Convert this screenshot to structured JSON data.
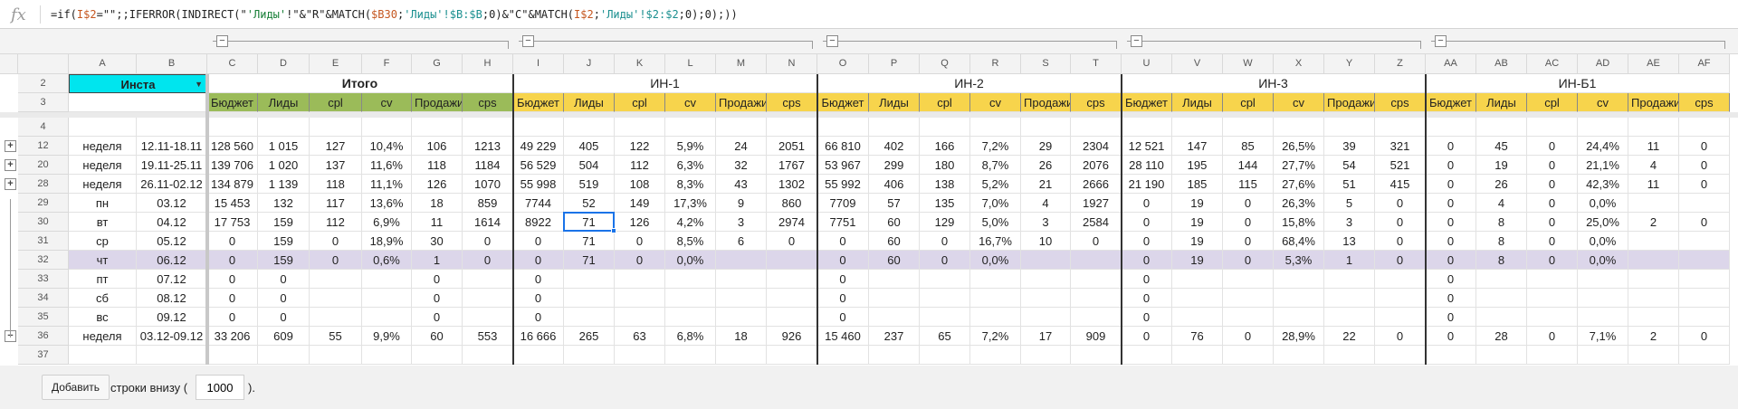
{
  "formula_bar": {
    "fx_label": "fx",
    "formula_parts": [
      {
        "t": "=if(",
        "c": ""
      },
      {
        "t": "I$2",
        "c": "fsorange"
      },
      {
        "t": "=\"\";;IFERROR(INDIRECT(\"",
        "c": ""
      },
      {
        "t": "'Лиды'",
        "c": "fsgreen"
      },
      {
        "t": "!\"&\"R\"&MATCH(",
        "c": ""
      },
      {
        "t": "$B30",
        "c": "fsorange"
      },
      {
        "t": ";",
        "c": ""
      },
      {
        "t": "'Лиды'!$B:$B",
        "c": "fsteal"
      },
      {
        "t": ";0)&\"C\"&MATCH(",
        "c": ""
      },
      {
        "t": "I$2",
        "c": "fsorange"
      },
      {
        "t": ";",
        "c": ""
      },
      {
        "t": "'Лиды'!$2:$2",
        "c": "fsteal"
      },
      {
        "t": ";0);0);))",
        "c": ""
      }
    ]
  },
  "colors": {
    "cyan": "#00e5ee",
    "green": "#9bbb59",
    "yellow": "#f7d44c",
    "lavender": "#dcd6ea",
    "selection": "#1a73e8"
  },
  "column_letters": [
    "A",
    "B",
    "C",
    "D",
    "E",
    "F",
    "G",
    "H",
    "I",
    "J",
    "K",
    "L",
    "M",
    "N",
    "O",
    "P",
    "Q",
    "R",
    "S",
    "T",
    "U",
    "V",
    "W",
    "X",
    "Y",
    "Z",
    "AA",
    "AB",
    "AC",
    "AD",
    "AE",
    "AF"
  ],
  "frozen": {
    "row2": {
      "num": "2",
      "a": "Инста"
    },
    "row3": {
      "num": "3"
    }
  },
  "groups": [
    {
      "title": "Итого",
      "sub_color": "green"
    },
    {
      "title": "ИН-1",
      "sub_color": "yellow"
    },
    {
      "title": "ИН-2",
      "sub_color": "yellow"
    },
    {
      "title": "ИН-3",
      "sub_color": "yellow"
    },
    {
      "title": "ИН-Б1",
      "sub_color": "yellow"
    }
  ],
  "subheaders": [
    "Бюджет",
    "Лиды",
    "cpl",
    "cv",
    "Продажи",
    "cps"
  ],
  "rows": [
    {
      "num": "4",
      "toggle": "",
      "a": "",
      "b": "",
      "cells": []
    },
    {
      "num": "12",
      "toggle": "+",
      "a": "неделя",
      "b": "12.11-18.11",
      "cells": [
        "128 560",
        "1 015",
        "127",
        "10,4%",
        "106",
        "1213",
        "49 229",
        "405",
        "122",
        "5,9%",
        "24",
        "2051",
        "66 810",
        "402",
        "166",
        "7,2%",
        "29",
        "2304",
        "12 521",
        "147",
        "85",
        "26,5%",
        "39",
        "321",
        "0",
        "45",
        "0",
        "24,4%",
        "11",
        "0"
      ]
    },
    {
      "num": "20",
      "toggle": "+",
      "a": "неделя",
      "b": "19.11-25.11",
      "cells": [
        "139 706",
        "1 020",
        "137",
        "11,6%",
        "118",
        "1184",
        "56 529",
        "504",
        "112",
        "6,3%",
        "32",
        "1767",
        "53 967",
        "299",
        "180",
        "8,7%",
        "26",
        "2076",
        "28 110",
        "195",
        "144",
        "27,7%",
        "54",
        "521",
        "0",
        "19",
        "0",
        "21,1%",
        "4",
        "0"
      ]
    },
    {
      "num": "28",
      "toggle": "+",
      "a": "неделя",
      "b": "26.11-02.12",
      "cells": [
        "134 879",
        "1 139",
        "118",
        "11,1%",
        "126",
        "1070",
        "55 998",
        "519",
        "108",
        "8,3%",
        "43",
        "1302",
        "55 992",
        "406",
        "138",
        "5,2%",
        "21",
        "2666",
        "21 190",
        "185",
        "115",
        "27,6%",
        "51",
        "415",
        "0",
        "26",
        "0",
        "42,3%",
        "11",
        "0"
      ]
    },
    {
      "num": "29",
      "toggle": "",
      "a": "пн",
      "b": "03.12",
      "cells": [
        "15 453",
        "132",
        "117",
        "13,6%",
        "18",
        "859",
        "7744",
        "52",
        "149",
        "17,3%",
        "9",
        "860",
        "7709",
        "57",
        "135",
        "7,0%",
        "4",
        "1927",
        "0",
        "19",
        "0",
        "26,3%",
        "5",
        "0",
        "0",
        "4",
        "0",
        "0,0%",
        "",
        ""
      ]
    },
    {
      "num": "30",
      "toggle": "",
      "a": "вт",
      "b": "04.12",
      "cells": [
        "17 753",
        "159",
        "112",
        "6,9%",
        "11",
        "1614",
        "8922",
        "71",
        "126",
        "4,2%",
        "3",
        "2974",
        "7751",
        "60",
        "129",
        "5,0%",
        "3",
        "2584",
        "0",
        "19",
        "0",
        "15,8%",
        "3",
        "0",
        "0",
        "8",
        "0",
        "25,0%",
        "2",
        "0"
      ]
    },
    {
      "num": "31",
      "toggle": "",
      "a": "ср",
      "b": "05.12",
      "cells": [
        "0",
        "159",
        "0",
        "18,9%",
        "30",
        "0",
        "0",
        "71",
        "0",
        "8,5%",
        "6",
        "0",
        "0",
        "60",
        "0",
        "16,7%",
        "10",
        "0",
        "0",
        "19",
        "0",
        "68,4%",
        "13",
        "0",
        "0",
        "8",
        "0",
        "0,0%",
        "",
        ""
      ]
    },
    {
      "num": "32",
      "toggle": "",
      "a": "чт",
      "b": "06.12",
      "hl": true,
      "cells": [
        "0",
        "159",
        "0",
        "0,6%",
        "1",
        "0",
        "0",
        "71",
        "0",
        "0,0%",
        "",
        "",
        "0",
        "60",
        "0",
        "0,0%",
        "",
        "",
        "0",
        "19",
        "0",
        "5,3%",
        "1",
        "0",
        "0",
        "8",
        "0",
        "0,0%",
        "",
        ""
      ]
    },
    {
      "num": "33",
      "toggle": "",
      "a": "пт",
      "b": "07.12",
      "cells": [
        "0",
        "0",
        "",
        "",
        "0",
        "",
        "0",
        "",
        "",
        "",
        "",
        "",
        "0",
        "",
        "",
        "",
        "",
        "",
        "0",
        "",
        "",
        "",
        "",
        "",
        "0",
        "",
        "",
        "",
        "",
        ""
      ]
    },
    {
      "num": "34",
      "toggle": "",
      "a": "сб",
      "b": "08.12",
      "cells": [
        "0",
        "0",
        "",
        "",
        "0",
        "",
        "0",
        "",
        "",
        "",
        "",
        "",
        "0",
        "",
        "",
        "",
        "",
        "",
        "0",
        "",
        "",
        "",
        "",
        "",
        "0",
        "",
        "",
        "",
        "",
        ""
      ]
    },
    {
      "num": "35",
      "toggle": "",
      "a": "вс",
      "b": "09.12",
      "cells": [
        "0",
        "0",
        "",
        "",
        "0",
        "",
        "0",
        "",
        "",
        "",
        "",
        "",
        "0",
        "",
        "",
        "",
        "",
        "",
        "0",
        "",
        "",
        "",
        "",
        "",
        "0",
        "",
        "",
        "",
        "",
        ""
      ]
    },
    {
      "num": "36",
      "toggle": "−",
      "a": "неделя",
      "b": "03.12-09.12",
      "cells": [
        "33 206",
        "609",
        "55",
        "9,9%",
        "60",
        "553",
        "16 666",
        "265",
        "63",
        "6,8%",
        "18",
        "926",
        "15 460",
        "237",
        "65",
        "7,2%",
        "17",
        "909",
        "0",
        "76",
        "0",
        "28,9%",
        "22",
        "0",
        "0",
        "28",
        "0",
        "7,1%",
        "2",
        "0"
      ]
    },
    {
      "num": "37",
      "toggle": "",
      "a": "",
      "b": "",
      "cells": []
    }
  ],
  "footer": {
    "add_button": "Добавить",
    "rows_text": "строки внизу (",
    "rows_value": "1000",
    "tail": ")."
  }
}
